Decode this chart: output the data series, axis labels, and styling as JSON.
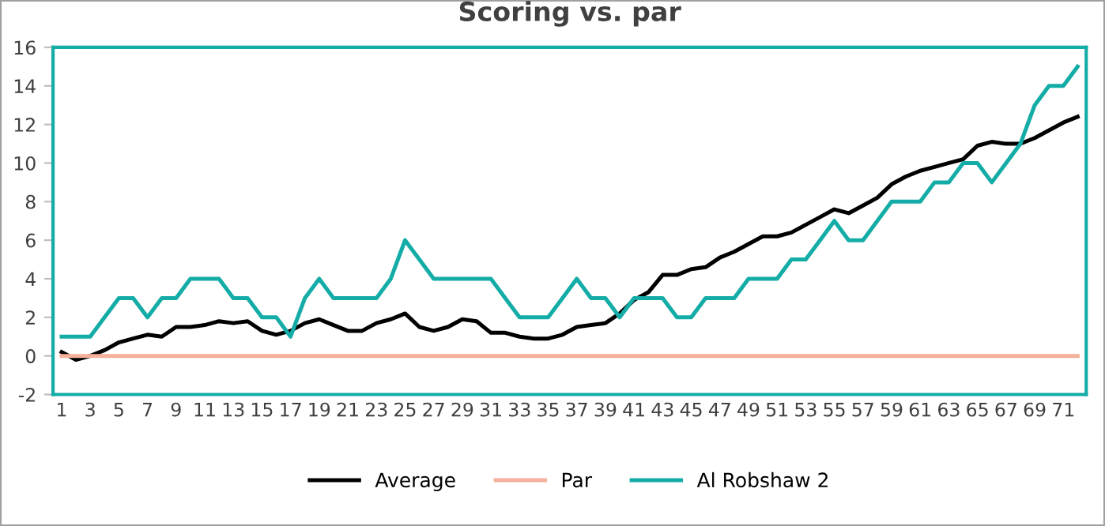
{
  "chart_data": {
    "type": "line",
    "title": "Scoring vs. par",
    "categories": [
      "1",
      null,
      "3",
      null,
      "5",
      null,
      "7",
      null,
      "9",
      null,
      "11",
      null,
      "13",
      null,
      "15",
      null,
      "17",
      null,
      "19",
      null,
      "21",
      null,
      "23",
      null,
      "25",
      null,
      "27",
      null,
      "29",
      null,
      "31",
      null,
      "33",
      null,
      "35",
      null,
      "37",
      null,
      "39",
      null,
      "41",
      null,
      "43",
      null,
      "45",
      null,
      "47",
      null,
      "49",
      null,
      "51",
      null,
      "53",
      null,
      "55",
      null,
      "57",
      null,
      "59",
      null,
      "61",
      null,
      "63",
      null,
      "65",
      null,
      "67",
      null,
      "69",
      null,
      "71",
      null
    ],
    "series": [
      {
        "name": "Average",
        "color": "#000000",
        "values": [
          0.2,
          -0.2,
          0,
          0.3,
          0.7,
          0.9,
          1.1,
          1.0,
          1.5,
          1.5,
          1.6,
          1.8,
          1.7,
          1.8,
          1.3,
          1.1,
          1.3,
          1.7,
          1.9,
          1.6,
          1.3,
          1.3,
          1.7,
          1.9,
          2.2,
          1.5,
          1.3,
          1.5,
          1.9,
          1.8,
          1.2,
          1.2,
          1.0,
          0.9,
          0.9,
          1.1,
          1.5,
          1.6,
          1.7,
          2.2,
          2.9,
          3.3,
          4.2,
          4.2,
          4.5,
          4.6,
          5.1,
          5.4,
          5.8,
          6.2,
          6.2,
          6.4,
          6.8,
          7.2,
          7.6,
          7.4,
          7.8,
          8.2,
          8.9,
          9.3,
          9.6,
          9.8,
          10.0,
          10.2,
          10.9,
          11.1,
          11.0,
          11.0,
          11.3,
          11.7,
          12.1,
          12.4
        ]
      },
      {
        "name": "Par",
        "color": "#f4b09a",
        "values": [
          0,
          0,
          0,
          0,
          0,
          0,
          0,
          0,
          0,
          0,
          0,
          0,
          0,
          0,
          0,
          0,
          0,
          0,
          0,
          0,
          0,
          0,
          0,
          0,
          0,
          0,
          0,
          0,
          0,
          0,
          0,
          0,
          0,
          0,
          0,
          0,
          0,
          0,
          0,
          0,
          0,
          0,
          0,
          0,
          0,
          0,
          0,
          0,
          0,
          0,
          0,
          0,
          0,
          0,
          0,
          0,
          0,
          0,
          0,
          0,
          0,
          0,
          0,
          0,
          0,
          0,
          0,
          0,
          0,
          0,
          0,
          0
        ]
      },
      {
        "name": "Al Robshaw 2",
        "color": "#13aca6",
        "values": [
          1,
          1,
          1,
          2,
          3,
          3,
          2,
          3,
          3,
          4,
          4,
          4,
          3,
          3,
          2,
          2,
          1,
          3,
          4,
          3,
          3,
          3,
          3,
          4,
          6,
          5,
          4,
          4,
          4,
          4,
          4,
          3,
          2,
          2,
          2,
          3,
          4,
          3,
          3,
          2,
          3,
          3,
          3,
          2,
          2,
          3,
          3,
          3,
          4,
          4,
          4,
          5,
          5,
          6,
          7,
          6,
          6,
          7,
          8,
          8,
          8,
          9,
          9,
          10,
          10,
          9,
          10,
          11,
          13,
          14,
          14,
          15
        ]
      }
    ],
    "ylim": [
      -2,
      16
    ],
    "yticks": [
      -2,
      0,
      2,
      4,
      6,
      8,
      10,
      12,
      14,
      16
    ],
    "grid": false,
    "legend": "bottom",
    "marker": "none",
    "line_style": "solid"
  }
}
